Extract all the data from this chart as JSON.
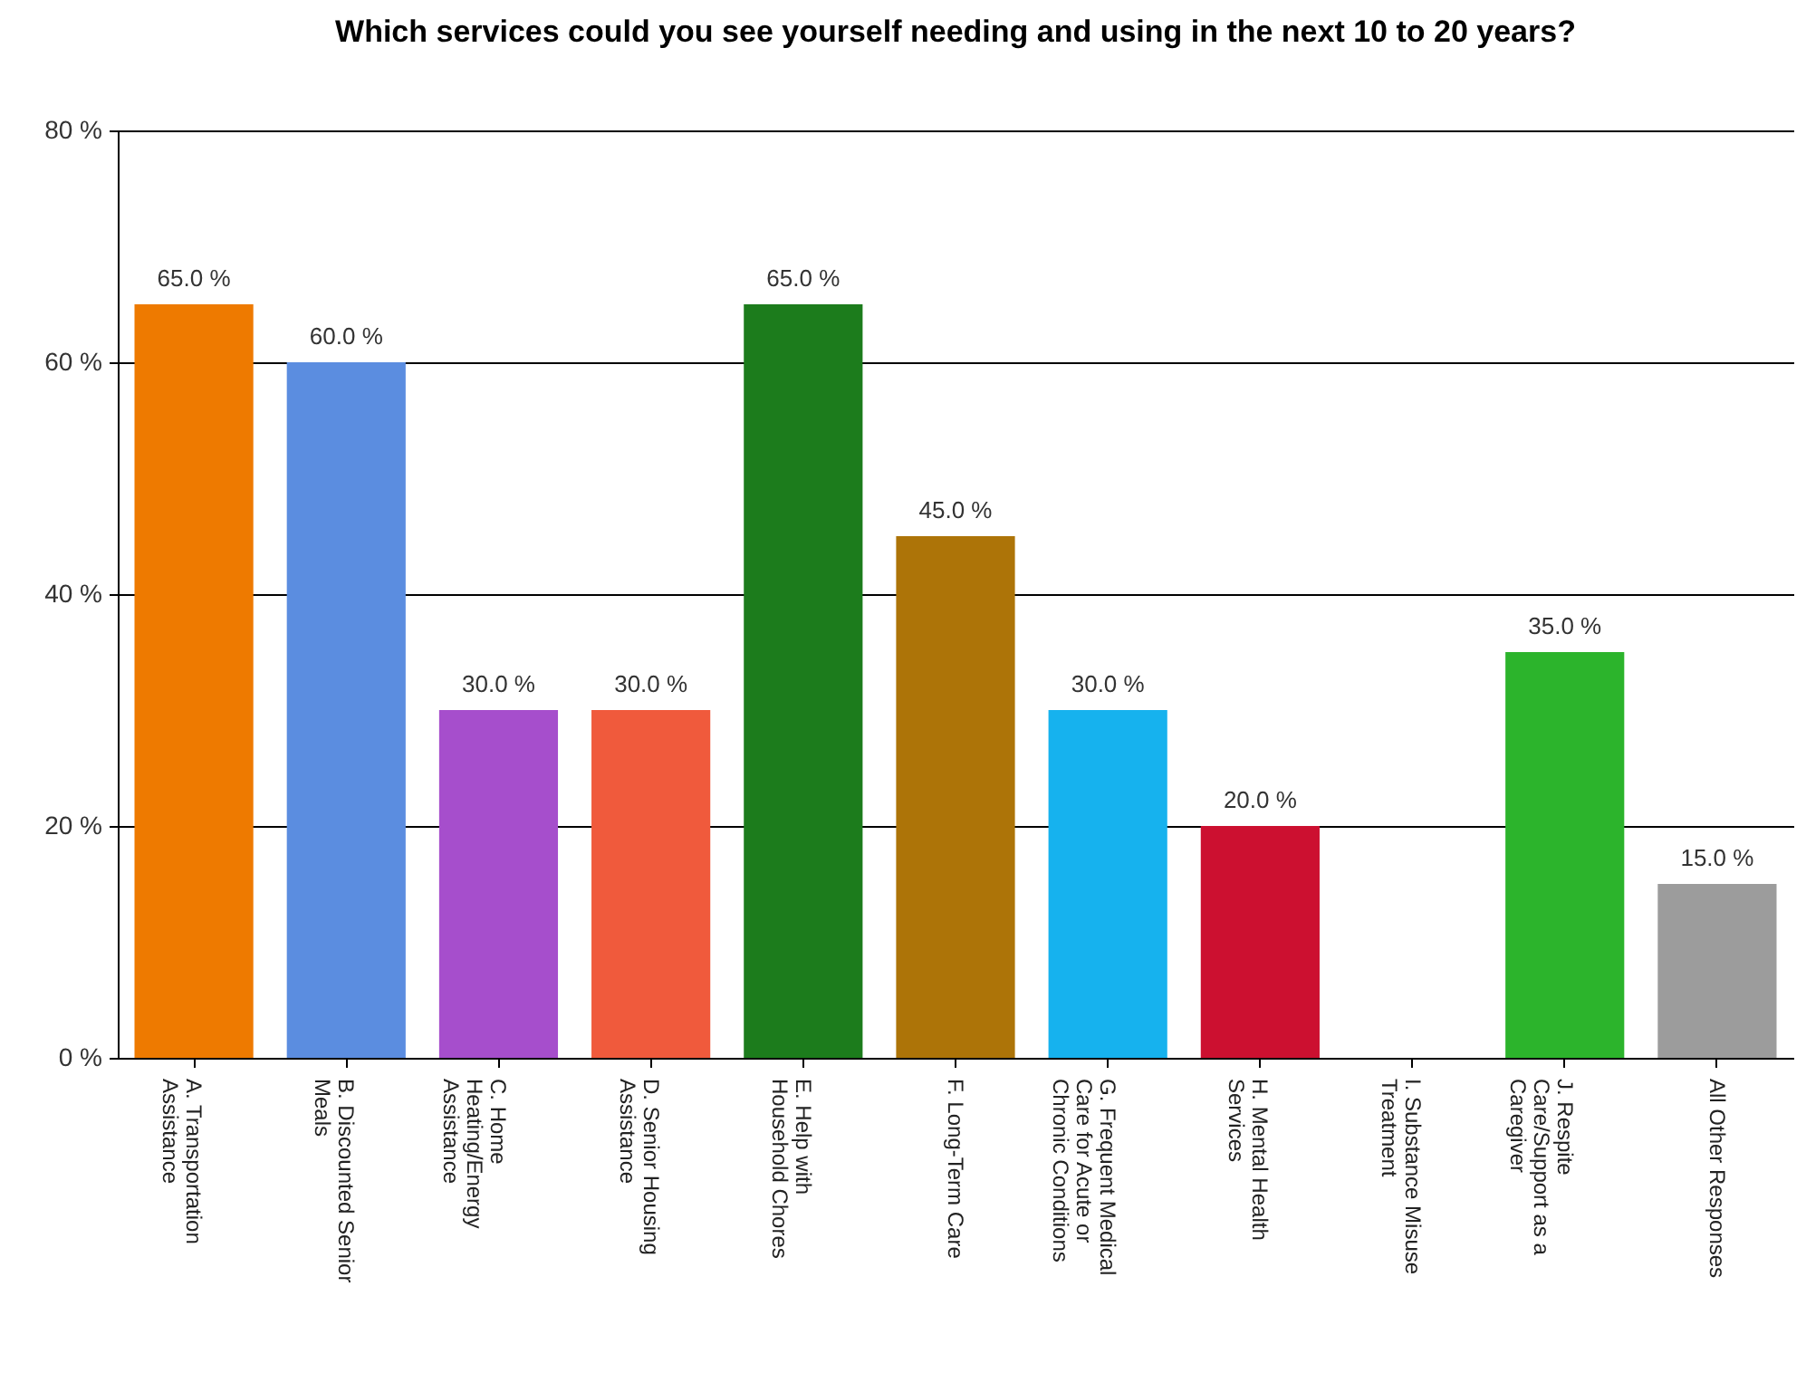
{
  "chart_data": {
    "type": "bar",
    "title": "Which services could you see yourself needing and using in the next 10 to 20 years?",
    "categories": [
      "A. Transportation Assistance",
      "B. Discounted Senior Meals",
      "C. Home Heating/Energy Assistance",
      "D. Senior Housing Assistance",
      "E. Help with Household Chores",
      "F. Long-Term Care",
      "G. Frequent Medical Care for Acute or Chronic Conditions",
      "H. Mental Health Services",
      "I. Substance Misuse Treatment",
      "J. Respite Care/Support as a Caregiver",
      "All Other Responses"
    ],
    "values": [
      65,
      60,
      30,
      30,
      65,
      45,
      30,
      20,
      0,
      35,
      15
    ],
    "value_labels": [
      "65.0 %",
      "60.0 %",
      "30.0 %",
      "30.0 %",
      "65.0 %",
      "45.0 %",
      "30.0 %",
      "20.0 %",
      null,
      "35.0 %",
      "15.0 %"
    ],
    "colors": [
      "#ee7a00",
      "#5b8de0",
      "#a64ecc",
      "#f05a3c",
      "#1c7c1c",
      "#ad7408",
      "#16b2ee",
      "#cc1030",
      "#888888",
      "#2cb42c",
      "#9c9c9c"
    ],
    "ylim": [
      0,
      80
    ],
    "yticks": [
      {
        "value": 0,
        "label": "0 %"
      },
      {
        "value": 20,
        "label": "20 %"
      },
      {
        "value": 40,
        "label": "40 %"
      },
      {
        "value": 60,
        "label": "60 %"
      },
      {
        "value": 80,
        "label": "80 %"
      }
    ],
    "grid": "y"
  }
}
